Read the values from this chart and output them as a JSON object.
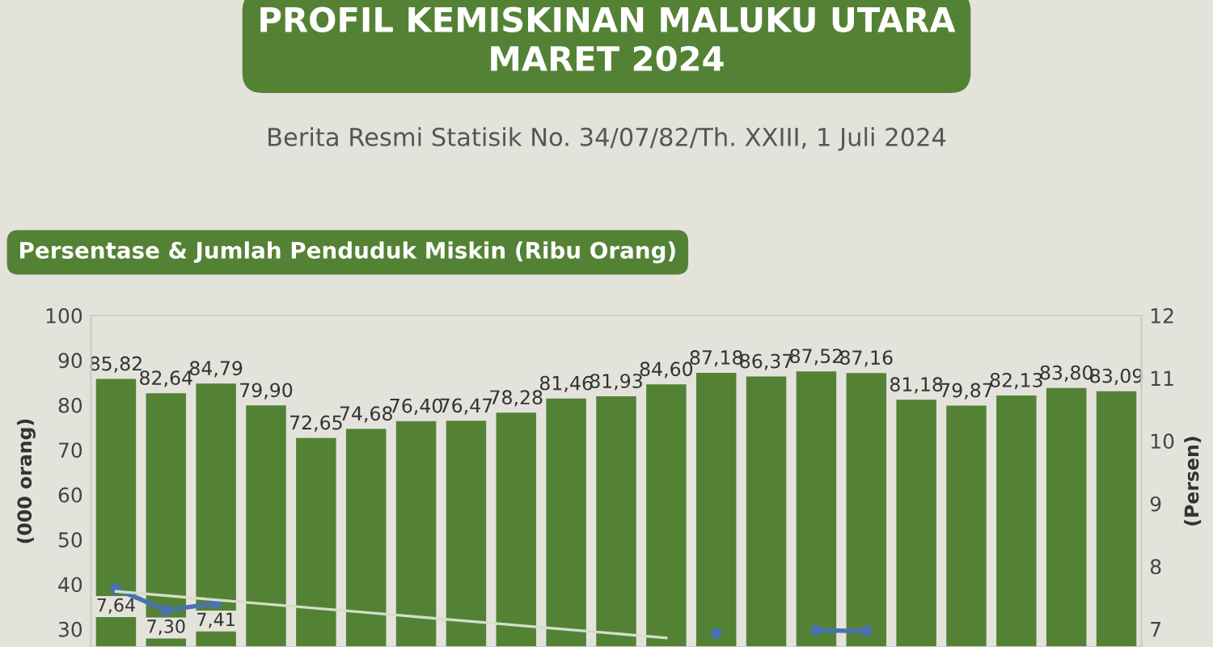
{
  "chart_data": {
    "type": "bar",
    "title": "PROFIL KEMISKINAN MALUKU UTARA\nMARET 2024",
    "subtitle": "Berita Resmi Statisik No. 34/07/82/Th. XXIII, 1 Juli 2024",
    "annotations": [
      "Persentase & Jumlah Penduduk Miskin (Ribu Orang)"
    ],
    "categories": [
      null,
      null,
      null,
      null,
      null,
      null,
      null,
      null,
      null,
      null,
      null,
      null,
      null,
      null,
      null,
      null,
      null,
      null,
      null,
      null,
      null
    ],
    "series": [
      {
        "color": "#548235",
        "values": [
          85.82,
          82.64,
          84.79,
          79.9,
          72.65,
          74.68,
          76.4,
          76.47,
          78.28,
          81.46,
          81.93,
          84.6,
          87.18,
          86.37,
          87.52,
          87.16,
          81.18,
          79.87,
          82.13,
          83.8,
          83.09
        ],
        "value_labels": [
          "85,82",
          "82,64",
          "84,79",
          "79,90",
          "72,65",
          "74,68",
          "76,40",
          "76,47",
          "78,28",
          "81,46",
          "81,93",
          "84,60",
          "87,18",
          "86,37",
          "87,52",
          "87,16",
          "81,18",
          "79,87",
          "82,13",
          "83,80",
          "83,09"
        ]
      },
      {
        "type": "line",
        "axis": "y2",
        "color": "#4a72b0",
        "marker": "circle",
        "values": [
          7.64,
          7.3,
          7.41,
          null,
          null,
          null,
          null,
          null,
          null,
          null,
          null,
          null,
          6.93,
          null,
          6.98,
          6.97,
          null,
          null,
          null,
          null,
          null
        ],
        "value_labels": [
          "7,64",
          "7,30",
          "7,41",
          null,
          null,
          null,
          null,
          null,
          null,
          null,
          null,
          null,
          null,
          null,
          null,
          null,
          null,
          null,
          null,
          null,
          null
        ]
      },
      {
        "type": "line",
        "axis": "y2",
        "color": "#d4dfc6",
        "values": [
          7.6,
          null,
          null,
          null,
          null,
          null,
          null,
          null,
          null,
          null,
          null,
          6.86,
          null,
          null,
          null,
          null,
          null,
          null,
          null,
          null,
          null
        ]
      }
    ],
    "ylim": [
      26,
      100
    ],
    "yticks": [
      30,
      40,
      50,
      60,
      70,
      80,
      90,
      100
    ],
    "y2lim": [
      6.714,
      12
    ],
    "y2ticks": [
      7,
      8,
      9,
      10,
      11,
      12
    ],
    "ylabel": "(000 orang)",
    "y2label": "(Persen)",
    "grid": false
  }
}
